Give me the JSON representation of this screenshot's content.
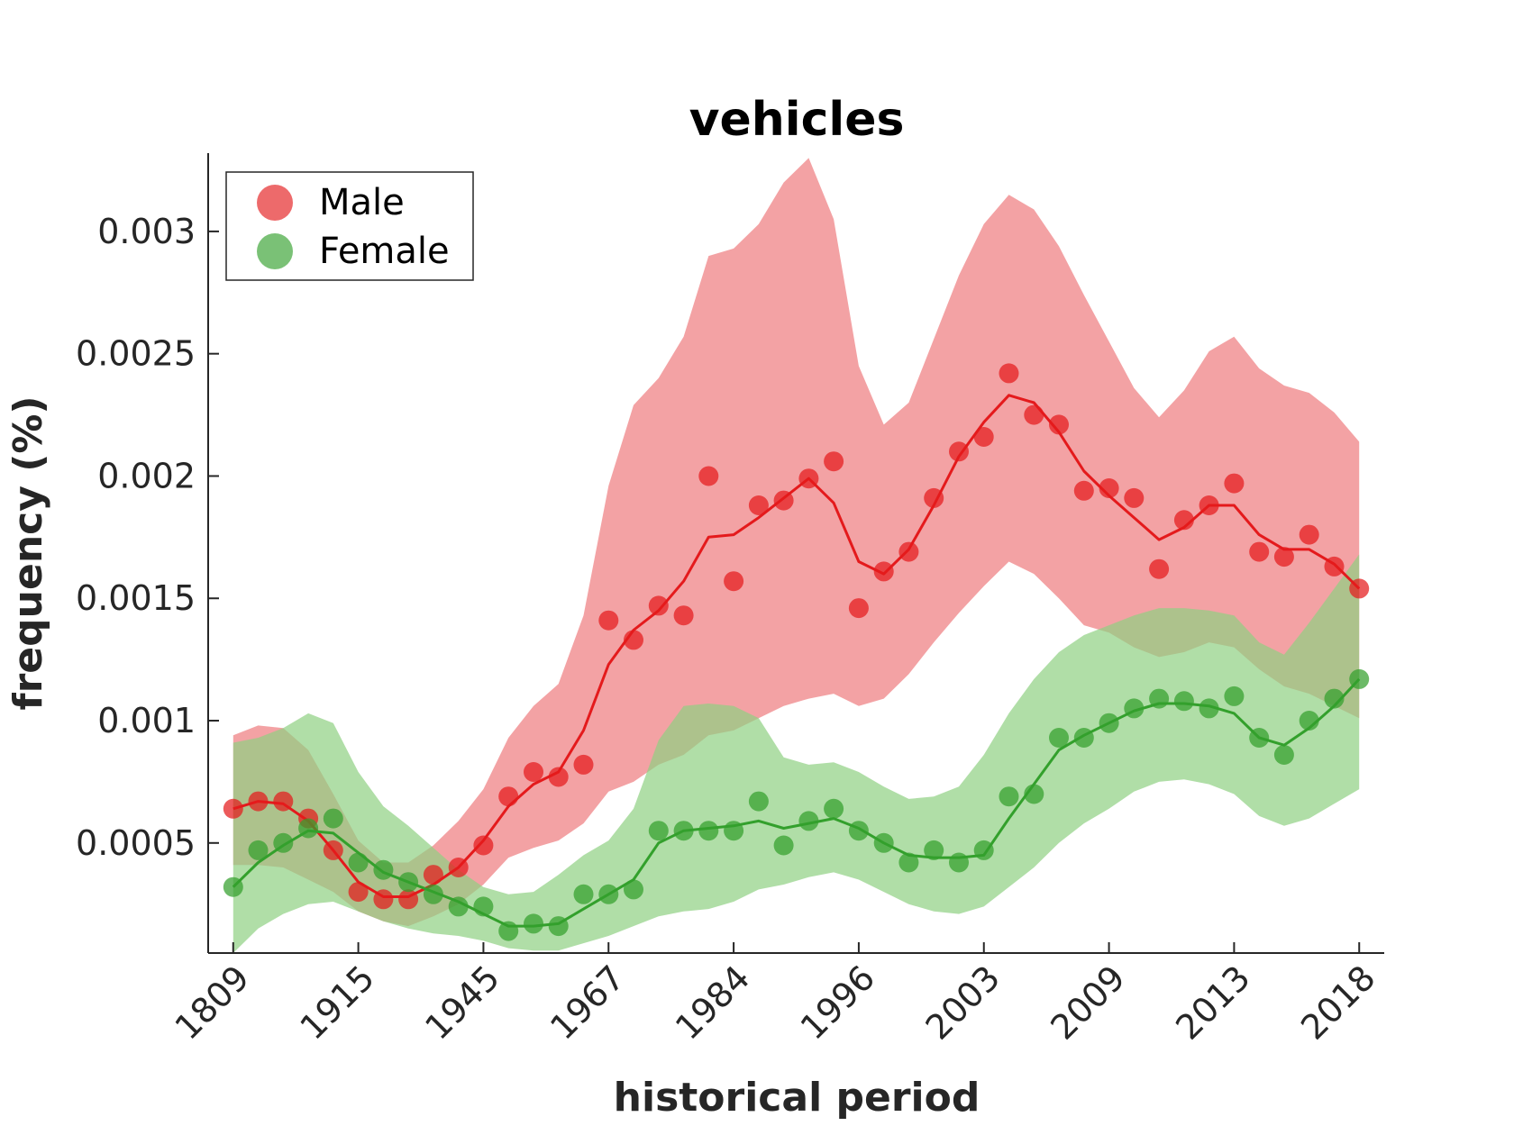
{
  "chart_data": {
    "type": "line",
    "title": "vehicles",
    "xlabel": "historical period",
    "ylabel": "frequency (%)",
    "categories": [
      "1809",
      "1915",
      "1945",
      "1967",
      "1984",
      "1996",
      "2003",
      "2009",
      "2013",
      "2018"
    ],
    "yticks": [
      "0.0005",
      "0.001",
      "0.0015",
      "0.002",
      "0.0025",
      "0.003"
    ],
    "ytick_values": [
      0.0005,
      0.001,
      0.0015,
      0.002,
      0.0025,
      0.003
    ],
    "ylim": [
      5e-05,
      0.00332
    ],
    "xlim": [
      -1,
      46
    ],
    "n_points": 46,
    "grid": false,
    "legend": {
      "position": "top-left"
    },
    "series": [
      {
        "name": "Male",
        "color": "#e41a1c",
        "band_color": "#f0888a",
        "points": [
          0.00064,
          0.00067,
          0.00067,
          0.0006,
          0.00047,
          0.0003,
          0.00027,
          0.00027,
          0.00037,
          0.0004,
          0.00049,
          0.00069,
          0.00079,
          0.00077,
          0.00082,
          0.00141,
          0.00133,
          0.00147,
          0.00143,
          0.002,
          0.00157,
          0.00188,
          0.0019,
          0.00199,
          0.00206,
          0.00146,
          0.00161,
          0.00169,
          0.00191,
          0.0021,
          0.00216,
          0.00242,
          0.00225,
          0.00221,
          0.00194,
          0.00195,
          0.00191,
          0.00162,
          0.00182,
          0.00188,
          0.00197,
          0.00169,
          0.00167,
          0.00176,
          0.00163,
          0.00154
        ],
        "trend": [
          0.00064,
          0.00067,
          0.00066,
          0.00059,
          0.00047,
          0.00034,
          0.00028,
          0.00028,
          0.00033,
          0.0004,
          0.00051,
          0.00065,
          0.00074,
          0.00079,
          0.00096,
          0.00123,
          0.00137,
          0.00145,
          0.00157,
          0.00175,
          0.00176,
          0.00183,
          0.00191,
          0.00199,
          0.00189,
          0.00165,
          0.0016,
          0.0017,
          0.00188,
          0.00208,
          0.00222,
          0.00233,
          0.0023,
          0.00218,
          0.00202,
          0.00192,
          0.00183,
          0.00174,
          0.00179,
          0.00188,
          0.00188,
          0.00176,
          0.0017,
          0.0017,
          0.00164,
          0.00154
        ],
        "band_lower": [
          0.00041,
          0.00041,
          0.0004,
          0.00035,
          0.0003,
          0.00022,
          0.00018,
          0.00016,
          0.0002,
          0.00025,
          0.00033,
          0.00044,
          0.00048,
          0.00051,
          0.00058,
          0.00071,
          0.00075,
          0.00082,
          0.00086,
          0.00094,
          0.00096,
          0.00101,
          0.00106,
          0.00109,
          0.00111,
          0.00106,
          0.00109,
          0.00119,
          0.00132,
          0.00144,
          0.00155,
          0.00165,
          0.0016,
          0.0015,
          0.00139,
          0.00136,
          0.0013,
          0.00126,
          0.00128,
          0.00132,
          0.0013,
          0.00121,
          0.00114,
          0.00111,
          0.00106,
          0.00101
        ],
        "band_upper": [
          0.00094,
          0.00098,
          0.00097,
          0.00088,
          0.0007,
          0.00051,
          0.00042,
          0.00042,
          0.00049,
          0.00059,
          0.00072,
          0.00093,
          0.00106,
          0.00115,
          0.00143,
          0.00196,
          0.00229,
          0.0024,
          0.00257,
          0.0029,
          0.00293,
          0.00303,
          0.0032,
          0.0033,
          0.00305,
          0.00245,
          0.00221,
          0.0023,
          0.00256,
          0.00282,
          0.00303,
          0.00315,
          0.00309,
          0.00294,
          0.00274,
          0.00255,
          0.00236,
          0.00224,
          0.00235,
          0.00251,
          0.00257,
          0.00244,
          0.00237,
          0.00234,
          0.00226,
          0.00214
        ]
      },
      {
        "name": "Female",
        "color": "#33a02c",
        "band_color": "#8fd081",
        "points": [
          0.00032,
          0.00047,
          0.0005,
          0.00056,
          0.0006,
          0.00042,
          0.00039,
          0.00034,
          0.00029,
          0.00024,
          0.00024,
          0.00014,
          0.00017,
          0.00016,
          0.00029,
          0.00029,
          0.00031,
          0.00055,
          0.00055,
          0.00055,
          0.00055,
          0.00067,
          0.00049,
          0.00059,
          0.00064,
          0.00055,
          0.0005,
          0.00042,
          0.00047,
          0.00042,
          0.00047,
          0.00069,
          0.0007,
          0.00093,
          0.00093,
          0.00099,
          0.00105,
          0.00109,
          0.00108,
          0.00105,
          0.0011,
          0.00093,
          0.00086,
          0.001,
          0.00109,
          0.00117
        ],
        "trend": [
          0.00032,
          0.00042,
          0.00049,
          0.00055,
          0.00054,
          0.00046,
          0.00038,
          0.00034,
          0.0003,
          0.00026,
          0.00021,
          0.00016,
          0.00016,
          0.00017,
          0.00023,
          0.00029,
          0.00035,
          0.0005,
          0.00055,
          0.00056,
          0.00057,
          0.00059,
          0.00056,
          0.00058,
          0.0006,
          0.00056,
          0.0005,
          0.00045,
          0.00044,
          0.00044,
          0.00045,
          0.0006,
          0.00074,
          0.00088,
          0.00094,
          0.00099,
          0.00104,
          0.00107,
          0.00107,
          0.00106,
          0.00103,
          0.00093,
          0.0009,
          0.00097,
          0.00106,
          0.00117
        ],
        "band_lower": [
          5e-05,
          0.00015,
          0.00021,
          0.00025,
          0.00026,
          0.00022,
          0.00018,
          0.00015,
          0.00013,
          0.00012,
          0.0001,
          7e-05,
          6e-05,
          6e-05,
          9e-05,
          0.00012,
          0.00016,
          0.0002,
          0.00022,
          0.00023,
          0.00026,
          0.00031,
          0.00033,
          0.00036,
          0.00038,
          0.00035,
          0.0003,
          0.00025,
          0.00022,
          0.00021,
          0.00024,
          0.00032,
          0.0004,
          0.0005,
          0.00058,
          0.00064,
          0.00071,
          0.00075,
          0.00076,
          0.00074,
          0.0007,
          0.00061,
          0.00057,
          0.0006,
          0.00066,
          0.00072
        ],
        "band_upper": [
          0.00091,
          0.00093,
          0.00097,
          0.00103,
          0.00099,
          0.00079,
          0.00065,
          0.00057,
          0.00048,
          0.00039,
          0.00032,
          0.00029,
          0.0003,
          0.00037,
          0.00045,
          0.00051,
          0.00064,
          0.00092,
          0.00106,
          0.00107,
          0.00106,
          0.00101,
          0.00085,
          0.00082,
          0.00083,
          0.00079,
          0.00073,
          0.00068,
          0.00069,
          0.00073,
          0.00086,
          0.00103,
          0.00117,
          0.00128,
          0.00135,
          0.00139,
          0.00143,
          0.00146,
          0.00146,
          0.00145,
          0.00143,
          0.00132,
          0.00127,
          0.0014,
          0.00154,
          0.00168
        ]
      }
    ]
  }
}
